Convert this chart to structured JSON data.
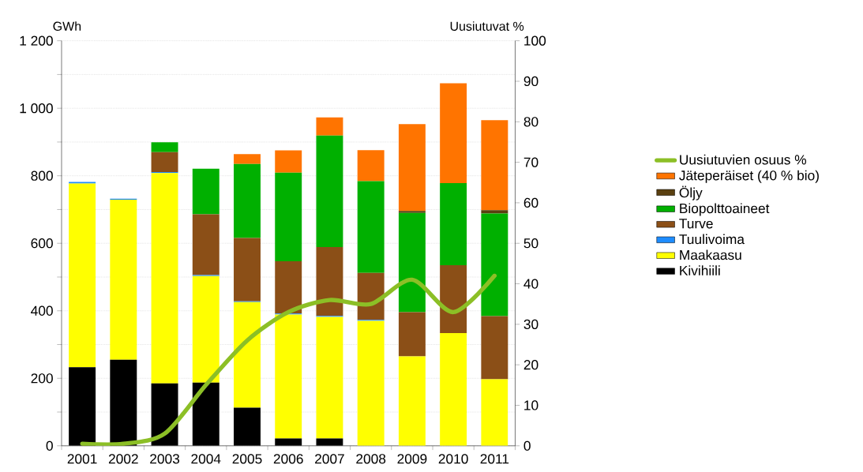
{
  "chart_data": {
    "type": "bar",
    "stacked": true,
    "ylabel": "GWh",
    "y2label": "Uusiutuvat %",
    "categories": [
      "2001",
      "2002",
      "2003",
      "2004",
      "2005",
      "2006",
      "2007",
      "2008",
      "2009",
      "2010",
      "2011"
    ],
    "series": [
      {
        "name": "Kivihiili",
        "color": "#000000",
        "values": [
          233,
          255,
          185,
          187,
          113,
          22,
          22,
          0,
          0,
          0,
          0
        ]
      },
      {
        "name": "Maakaasu",
        "color": "#ffff00",
        "values": [
          544,
          474,
          623,
          316,
          313,
          367,
          360,
          370,
          265,
          334,
          197
        ]
      },
      {
        "name": "Tuulivoima",
        "color": "#1e8cff",
        "values": [
          5,
          3,
          3,
          3,
          2,
          3,
          3,
          3,
          0,
          0,
          0
        ]
      },
      {
        "name": "Turve",
        "color": "#8b4f17",
        "values": [
          0,
          0,
          59,
          180,
          188,
          155,
          204,
          139,
          131,
          201,
          187
        ]
      },
      {
        "name": "Biopolttoaineet",
        "color": "#00b000",
        "values": [
          0,
          0,
          29,
          135,
          219,
          262,
          330,
          272,
          294,
          243,
          304
        ]
      },
      {
        "name": "Öljy",
        "color": "#5a4010",
        "values": [
          0,
          0,
          0,
          0,
          0,
          0,
          0,
          0,
          6,
          0,
          10
        ]
      },
      {
        "name": "Jäteperäiset (40 % bio)",
        "color": "#ff7400",
        "values": [
          0,
          0,
          0,
          0,
          29,
          66,
          54,
          92,
          257,
          296,
          267
        ]
      },
      {
        "name": "Uusiutuvien osuus %",
        "type": "line",
        "axis": "y2",
        "color": "#8cbf26",
        "values": [
          0.5,
          0.5,
          3,
          15,
          26,
          33,
          36,
          35,
          41,
          33,
          42
        ]
      }
    ],
    "ylim": [
      0,
      1200
    ],
    "yticks": [
      0,
      {
        "value": 100,
        "label": null
      },
      200,
      {
        "value": 300,
        "label": null
      },
      400,
      {
        "value": 500,
        "label": null
      },
      600,
      {
        "value": 700,
        "label": null
      },
      800,
      {
        "value": 900,
        "label": null
      },
      {
        "value": 1000,
        "label": "1 000"
      },
      {
        "value": 1100,
        "label": null
      },
      {
        "value": 1200,
        "label": "1 200"
      }
    ],
    "y2lim": [
      0,
      100
    ],
    "y2ticks": [
      0,
      10,
      20,
      30,
      40,
      50,
      60,
      70,
      80,
      90,
      100
    ],
    "grid": "y",
    "legend": "right"
  }
}
